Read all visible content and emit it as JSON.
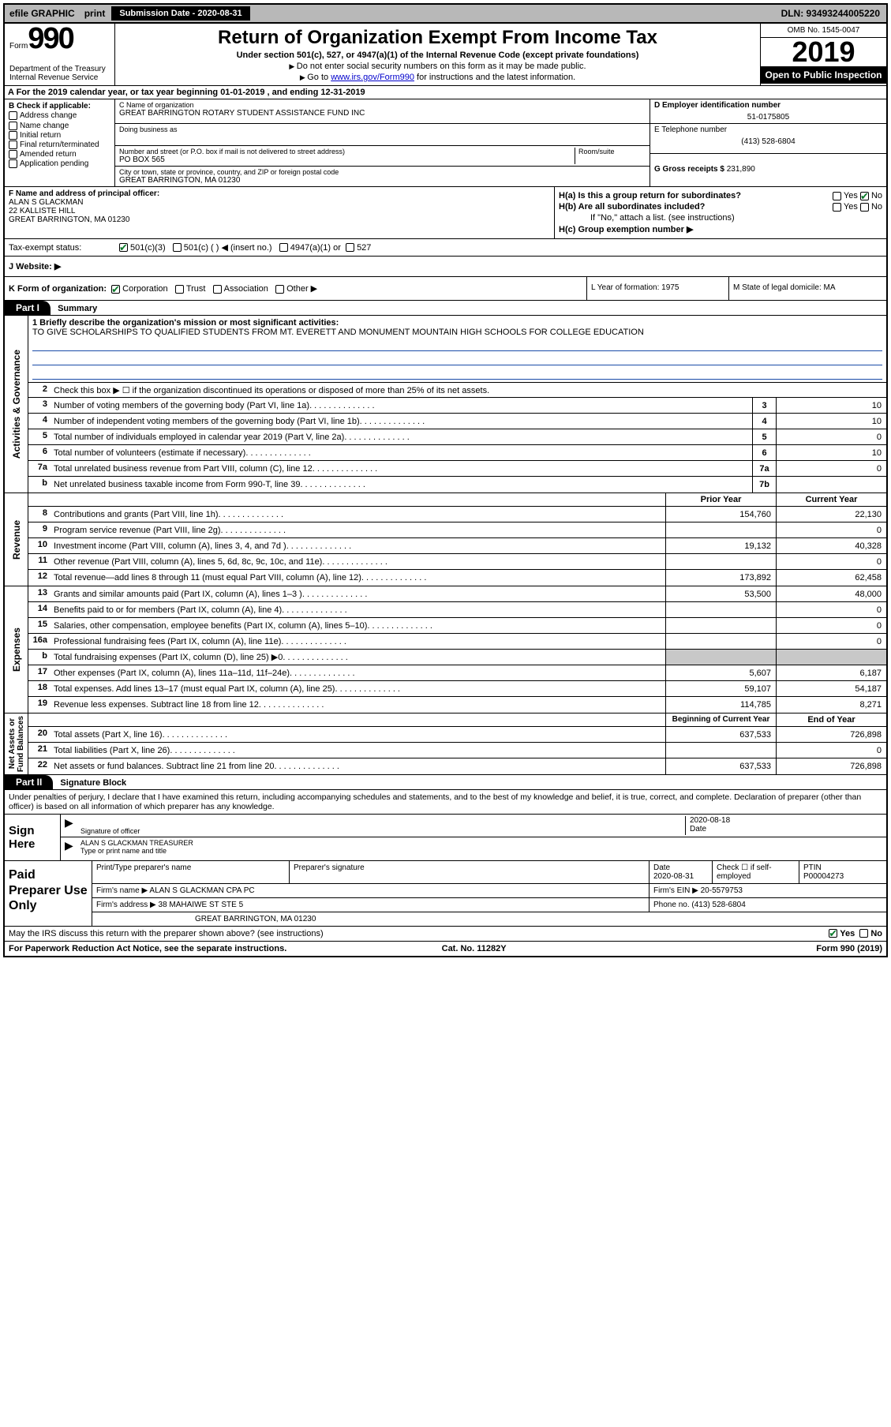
{
  "topbar": {
    "efile": "efile GRAPHIC",
    "print": "print",
    "submission_label": "Submission Date - 2020-08-31",
    "dln": "DLN: 93493244005220"
  },
  "header": {
    "form_word": "Form",
    "form_num": "990",
    "dept": "Department of the Treasury\nInternal Revenue Service",
    "title": "Return of Organization Exempt From Income Tax",
    "sub": "Under section 501(c), 527, or 4947(a)(1) of the Internal Revenue Code (except private foundations)",
    "note1": "Do not enter social security numbers on this form as it may be made public.",
    "note2_pre": "Go to ",
    "note2_link": "www.irs.gov/Form990",
    "note2_post": " for instructions and the latest information.",
    "omb": "OMB No. 1545-0047",
    "year": "2019",
    "open": "Open to Public Inspection"
  },
  "row_a": "A For the 2019 calendar year, or tax year beginning 01-01-2019    , and ending 12-31-2019",
  "col_b": {
    "label": "B Check if applicable:",
    "items": [
      "Address change",
      "Name change",
      "Initial return",
      "Final return/terminated",
      "Amended return",
      "Application pending"
    ]
  },
  "col_c": {
    "name_lbl": "C Name of organization",
    "name": "GREAT BARRINGTON ROTARY STUDENT ASSISTANCE FUND INC",
    "dba_lbl": "Doing business as",
    "addr_lbl": "Number and street (or P.O. box if mail is not delivered to street address)",
    "room_lbl": "Room/suite",
    "addr": "PO BOX 565",
    "city_lbl": "City or town, state or province, country, and ZIP or foreign postal code",
    "city": "GREAT BARRINGTON, MA  01230"
  },
  "col_d": {
    "lbl": "D Employer identification number",
    "val": "51-0175805"
  },
  "col_e": {
    "lbl": "E Telephone number",
    "val": "(413) 528-6804"
  },
  "col_g": {
    "lbl": "G Gross receipts $",
    "val": "231,890"
  },
  "col_f": {
    "lbl": "F Name and address of principal officer:",
    "name": "ALAN S GLACKMAN",
    "addr1": "22 KALLISTE HILL",
    "addr2": "GREAT BARRINGTON, MA  01230"
  },
  "col_h": {
    "a": "H(a)  Is this a group return for subordinates?",
    "b": "H(b)  Are all subordinates included?",
    "b_note": "If \"No,\" attach a list. (see instructions)",
    "c": "H(c)  Group exemption number ▶",
    "yes": "Yes",
    "no": "No"
  },
  "row_i": {
    "lbl": "Tax-exempt status:",
    "opts": [
      "501(c)(3)",
      "501(c) (  ) ◀ (insert no.)",
      "4947(a)(1) or",
      "527"
    ]
  },
  "row_j": "J   Website: ▶",
  "row_k": {
    "lbl": "K Form of organization:",
    "opts": [
      "Corporation",
      "Trust",
      "Association",
      "Other ▶"
    ],
    "l": "L Year of formation: 1975",
    "m": "M State of legal domicile: MA"
  },
  "parts": {
    "p1": "Part I",
    "p1_title": "Summary",
    "p2": "Part II",
    "p2_title": "Signature Block"
  },
  "sides": {
    "ag": "Activities & Governance",
    "rev": "Revenue",
    "exp": "Expenses",
    "na": "Net Assets or\nFund Balances"
  },
  "p1": {
    "l1_lbl": "1  Briefly describe the organization's mission or most significant activities:",
    "l1_txt": "TO GIVE SCHOLARSHIPS TO QUALIFIED STUDENTS FROM MT. EVERETT AND MONUMENT MOUNTAIN HIGH SCHOOLS FOR COLLEGE EDUCATION",
    "l2": "Check this box ▶ ☐  if the organization discontinued its operations or disposed of more than 25% of its net assets.",
    "lines": [
      {
        "n": "3",
        "d": "Number of voting members of the governing body (Part VI, line 1a)",
        "box": "3",
        "v": "10"
      },
      {
        "n": "4",
        "d": "Number of independent voting members of the governing body (Part VI, line 1b)",
        "box": "4",
        "v": "10"
      },
      {
        "n": "5",
        "d": "Total number of individuals employed in calendar year 2019 (Part V, line 2a)",
        "box": "5",
        "v": "0"
      },
      {
        "n": "6",
        "d": "Total number of volunteers (estimate if necessary)",
        "box": "6",
        "v": "10"
      },
      {
        "n": "7a",
        "d": "Total unrelated business revenue from Part VIII, column (C), line 12",
        "box": "7a",
        "v": "0"
      },
      {
        "n": "b",
        "d": "Net unrelated business taxable income from Form 990-T, line 39",
        "box": "7b",
        "v": ""
      }
    ],
    "hdr_prior": "Prior Year",
    "hdr_curr": "Current Year",
    "rev": [
      {
        "n": "8",
        "d": "Contributions and grants (Part VIII, line 1h)",
        "p": "154,760",
        "c": "22,130"
      },
      {
        "n": "9",
        "d": "Program service revenue (Part VIII, line 2g)",
        "p": "",
        "c": "0"
      },
      {
        "n": "10",
        "d": "Investment income (Part VIII, column (A), lines 3, 4, and 7d )",
        "p": "19,132",
        "c": "40,328"
      },
      {
        "n": "11",
        "d": "Other revenue (Part VIII, column (A), lines 5, 6d, 8c, 9c, 10c, and 11e)",
        "p": "",
        "c": "0"
      },
      {
        "n": "12",
        "d": "Total revenue—add lines 8 through 11 (must equal Part VIII, column (A), line 12)",
        "p": "173,892",
        "c": "62,458"
      }
    ],
    "exp": [
      {
        "n": "13",
        "d": "Grants and similar amounts paid (Part IX, column (A), lines 1–3 )",
        "p": "53,500",
        "c": "48,000"
      },
      {
        "n": "14",
        "d": "Benefits paid to or for members (Part IX, column (A), line 4)",
        "p": "",
        "c": "0"
      },
      {
        "n": "15",
        "d": "Salaries, other compensation, employee benefits (Part IX, column (A), lines 5–10)",
        "p": "",
        "c": "0"
      },
      {
        "n": "16a",
        "d": "Professional fundraising fees (Part IX, column (A), line 11e)",
        "p": "",
        "c": "0"
      },
      {
        "n": "b",
        "d": "Total fundraising expenses (Part IX, column (D), line 25) ▶0",
        "p": "shade",
        "c": "shade"
      },
      {
        "n": "17",
        "d": "Other expenses (Part IX, column (A), lines 11a–11d, 11f–24e)",
        "p": "5,607",
        "c": "6,187"
      },
      {
        "n": "18",
        "d": "Total expenses. Add lines 13–17 (must equal Part IX, column (A), line 25)",
        "p": "59,107",
        "c": "54,187"
      },
      {
        "n": "19",
        "d": "Revenue less expenses. Subtract line 18 from line 12",
        "p": "114,785",
        "c": "8,271"
      }
    ],
    "hdr_beg": "Beginning of Current Year",
    "hdr_end": "End of Year",
    "na": [
      {
        "n": "20",
        "d": "Total assets (Part X, line 16)",
        "p": "637,533",
        "c": "726,898"
      },
      {
        "n": "21",
        "d": "Total liabilities (Part X, line 26)",
        "p": "",
        "c": "0"
      },
      {
        "n": "22",
        "d": "Net assets or fund balances. Subtract line 21 from line 20",
        "p": "637,533",
        "c": "726,898"
      }
    ]
  },
  "sig": {
    "decl": "Under penalties of perjury, I declare that I have examined this return, including accompanying schedules and statements, and to the best of my knowledge and belief, it is true, correct, and complete. Declaration of preparer (other than officer) is based on all information of which preparer has any knowledge.",
    "sign_here": "Sign Here",
    "sig_lbl": "Signature of officer",
    "date_lbl": "Date",
    "date": "2020-08-18",
    "name": "ALAN S GLACKMAN  TREASURER",
    "name_lbl": "Type or print name and title"
  },
  "prep": {
    "title": "Paid Preparer Use Only",
    "h1": "Print/Type preparer's name",
    "h2": "Preparer's signature",
    "h3": "Date",
    "h3v": "2020-08-31",
    "h4": "Check ☐ if self-employed",
    "h5": "PTIN",
    "h5v": "P00004273",
    "firm_lbl": "Firm's name    ▶",
    "firm": "ALAN S GLACKMAN CPA PC",
    "ein_lbl": "Firm's EIN ▶",
    "ein": "20-5579753",
    "addr_lbl": "Firm's address ▶",
    "addr1": "38 MAHAIWE ST STE 5",
    "addr2": "GREAT BARRINGTON, MA  01230",
    "phone_lbl": "Phone no.",
    "phone": "(413) 528-6804",
    "discuss": "May the IRS discuss this return with the preparer shown above? (see instructions)",
    "yes": "Yes",
    "no": "No"
  },
  "footer": {
    "l": "For Paperwork Reduction Act Notice, see the separate instructions.",
    "c": "Cat. No. 11282Y",
    "r": "Form 990 (2019)"
  }
}
